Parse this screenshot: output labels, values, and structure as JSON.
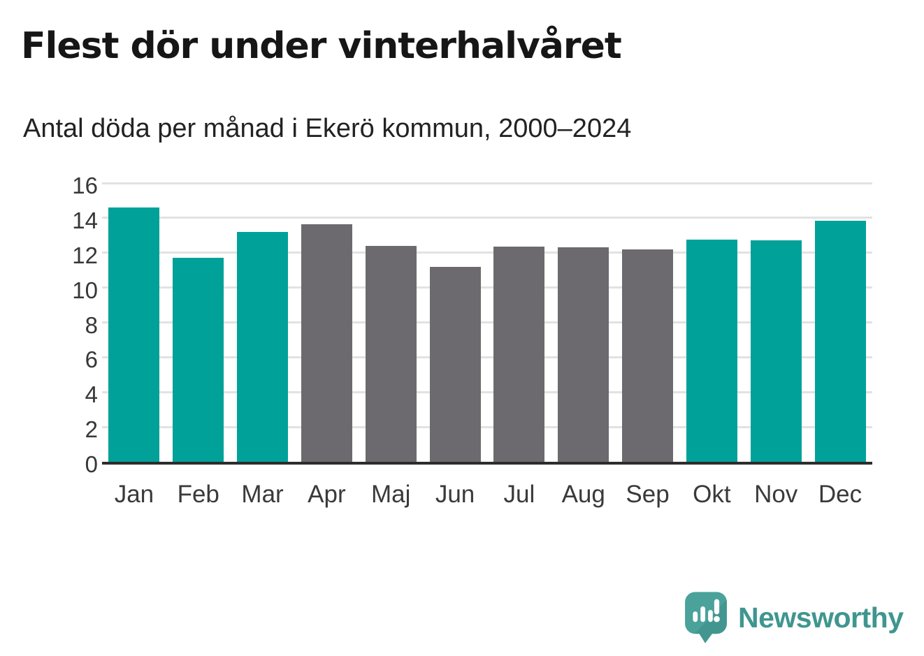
{
  "header": {
    "title": "Flest dör under vinterhalvåret",
    "subtitle": "Antal döda per månad i Ekerö kommun, 2000–2024"
  },
  "chart_data": {
    "type": "bar",
    "title": "Flest dör under vinterhalvåret",
    "subtitle": "Antal döda per månad i Ekerö kommun, 2000–2024",
    "categories": [
      "Jan",
      "Feb",
      "Mar",
      "Apr",
      "Maj",
      "Jun",
      "Jul",
      "Aug",
      "Sep",
      "Okt",
      "Nov",
      "Dec"
    ],
    "values": [
      14.6,
      11.7,
      13.2,
      13.65,
      12.4,
      11.2,
      12.35,
      12.3,
      12.2,
      12.75,
      12.7,
      13.85
    ],
    "bar_colors": [
      "teal",
      "teal",
      "teal",
      "gray",
      "gray",
      "gray",
      "gray",
      "gray",
      "gray",
      "teal",
      "teal",
      "teal"
    ],
    "xlabel": "",
    "ylabel": "",
    "ylim": [
      0,
      16
    ],
    "yticks": [
      0,
      2,
      4,
      6,
      8,
      10,
      12,
      14,
      16
    ],
    "grid": true,
    "legend": "none"
  },
  "colors": {
    "teal": "#00a199",
    "gray": "#6c6a6e",
    "grid": "#e2e2e2",
    "axis": "#2d2d2d",
    "tick_label": "#373737",
    "logo_teal": "#4aa29b",
    "logo_shade": "#3e8c86",
    "brand_text": "#3f968f"
  },
  "footer": {
    "brand": "Newsworthy",
    "logo_icon": "bar-chart-speech-bubble-icon"
  }
}
